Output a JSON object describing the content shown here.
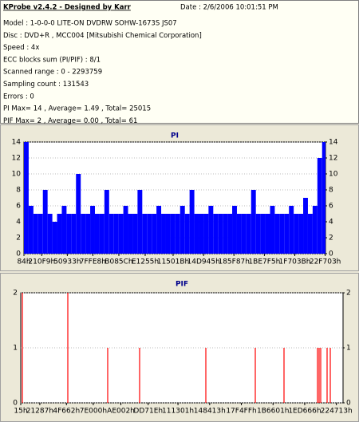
{
  "header": {
    "title": "KProbe v2.4.2 - Designed by Karr",
    "date": "Date : 2/6/2006 10:01:51 PM",
    "lines": [
      "Model : 1-0-0-0 LITE-ON DVDRW SOHW-1673S JS07",
      "Disc : DVD+R , MCC004 [Mitsubishi Chemical Corporation]",
      "Speed : 4x",
      "ECC blocks sum (PI/PIF) : 8/1",
      "Scanned range : 0 - 2293759",
      "Sampling count : 131543",
      "Errors : 0",
      "PI Max= 14 , Average= 1.49 , Total= 25015",
      "PIF Max= 2 , Average= 0.00 , Total= 61"
    ]
  },
  "chart_data": [
    {
      "type": "bar",
      "title": "PI",
      "color": "#0000ff",
      "grid": true,
      "x": [
        0,
        36000,
        72000,
        108000,
        144000,
        180000,
        216000,
        252000,
        288000,
        324000,
        360000,
        396000,
        432000,
        468000,
        504000,
        540000,
        576000,
        612000,
        648000,
        684000,
        720000,
        756000,
        792000,
        828000,
        864000,
        900000,
        936000,
        972000,
        1008000,
        1044000,
        1080000,
        1116000,
        1152000,
        1188000,
        1224000,
        1260000,
        1296000,
        1332000,
        1368000,
        1404000,
        1440000,
        1476000,
        1512000,
        1548000,
        1584000,
        1620000,
        1656000,
        1692000,
        1728000,
        1764000,
        1800000,
        1836000,
        1872000,
        1908000,
        1944000,
        1980000,
        2016000,
        2052000,
        2088000,
        2124000,
        2160000,
        2196000,
        2232000,
        2268000
      ],
      "values": [
        14,
        6,
        5,
        5,
        8,
        5,
        4,
        5,
        6,
        5,
        5,
        10,
        5,
        5,
        6,
        5,
        5,
        8,
        5,
        5,
        5,
        6,
        5,
        5,
        8,
        5,
        5,
        5,
        6,
        5,
        5,
        5,
        5,
        6,
        5,
        8,
        5,
        5,
        5,
        6,
        5,
        5,
        5,
        5,
        6,
        5,
        5,
        5,
        8,
        5,
        5,
        5,
        6,
        5,
        5,
        5,
        6,
        5,
        5,
        7,
        5,
        6,
        12,
        14
      ],
      "xlim": [
        0,
        2293759
      ],
      "xticks": [
        {
          "value": 132,
          "label": "84h"
        },
        {
          "value": 135417,
          "label": "210F9h"
        },
        {
          "value": 330035,
          "label": "50933h"
        },
        {
          "value": 524264,
          "label": "7FFE8h"
        },
        {
          "value": 722012,
          "label": "B085Ch"
        },
        {
          "value": 922197,
          "label": "E1255h"
        },
        {
          "value": 1134619,
          "label": "11501Bh"
        },
        {
          "value": 1366341,
          "label": "14D945h"
        },
        {
          "value": 1597319,
          "label": "185F87h"
        },
        {
          "value": 1828853,
          "label": "1BE7F5h"
        },
        {
          "value": 2060347,
          "label": "1F703Bh"
        },
        {
          "value": 2291459,
          "label": "22F703h"
        }
      ],
      "ylim": [
        0,
        14
      ],
      "yticks": [
        0,
        2,
        4,
        6,
        8,
        10,
        12,
        14
      ],
      "y2lim": [
        0,
        14
      ],
      "y2ticks": [
        0,
        2,
        4,
        6,
        8,
        10,
        12,
        14
      ]
    },
    {
      "type": "bar",
      "title": "PIF",
      "color": "#ff0000",
      "grid": true,
      "x": [
        11355,
        334976,
        618866,
        845971,
        1317213,
        1669232,
        1873626,
        2112086,
        2123441,
        2134797,
        2180218,
        2202928
      ],
      "values": [
        2,
        2,
        1,
        1,
        1,
        1,
        1,
        1,
        1,
        1,
        1,
        1
      ],
      "xlim": [
        0,
        2293759
      ],
      "xticks": [
        {
          "value": 21,
          "label": "15h"
        },
        {
          "value": 135815,
          "label": "21287h"
        },
        {
          "value": 325218,
          "label": "4F662h"
        },
        {
          "value": 516096,
          "label": "7E000h"
        },
        {
          "value": 712706,
          "label": "AE002h"
        },
        {
          "value": 907038,
          "label": "DD71Eh"
        },
        {
          "value": 1118977,
          "label": "111301h"
        },
        {
          "value": 1344531,
          "label": "148413h"
        },
        {
          "value": 1570047,
          "label": "17F4FFh"
        },
        {
          "value": 1795585,
          "label": "1B6601h"
        },
        {
          "value": 2020966,
          "label": "1ED666h"
        },
        {
          "value": 2246419,
          "label": "224713h"
        }
      ],
      "ylim": [
        0,
        2
      ],
      "yticks": [
        0,
        1,
        2
      ],
      "y2lim": [
        0,
        2
      ],
      "y2ticks": [
        0,
        1,
        2
      ]
    }
  ]
}
